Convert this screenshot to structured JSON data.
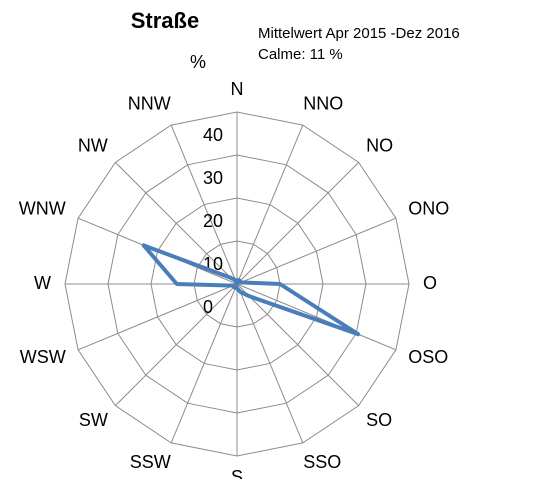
{
  "chart_data": {
    "type": "radar",
    "title": "Straße",
    "subtitle": "Mittelwert Apr 2015 -Dez 2016",
    "annotation": "Calme: 11 %",
    "y_label": "%",
    "categories": [
      "N",
      "NNO",
      "NO",
      "ONO",
      "O",
      "OSO",
      "SO",
      "SSO",
      "S",
      "SSW",
      "SW",
      "WSW",
      "W",
      "WNW",
      "NW",
      "NNW"
    ],
    "series": [
      {
        "name": "Straße",
        "color": "#4a7ebb",
        "values": [
          0,
          1,
          1,
          1,
          10,
          30.5,
          4,
          2,
          1,
          1,
          1,
          1,
          14,
          23.5,
          2,
          1
        ]
      }
    ],
    "ylim": [
      0,
      40
    ],
    "yticks": [
      0,
      10,
      20,
      30,
      40
    ],
    "grid": true
  }
}
